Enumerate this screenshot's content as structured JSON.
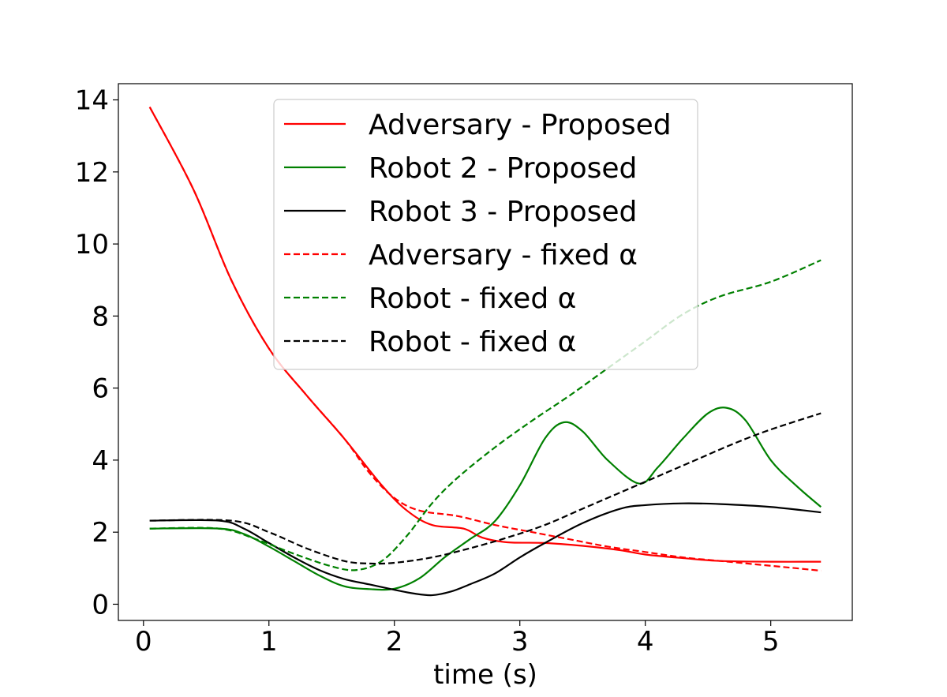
{
  "chart_data": {
    "type": "line",
    "title": "",
    "xlabel": "time (s)",
    "ylabel": "",
    "xlim": [
      -0.2,
      5.65
    ],
    "ylim": [
      -0.45,
      14.45
    ],
    "xticks": [
      0,
      1,
      2,
      3,
      4,
      5
    ],
    "yticks": [
      0,
      2,
      4,
      6,
      8,
      10,
      12,
      14
    ],
    "grid": false,
    "legend": "upper-center",
    "series": [
      {
        "name": "Adversary - Proposed",
        "color": "#ff0000",
        "style": "solid",
        "x": [
          0.05,
          0.4,
          0.7,
          1.0,
          1.3,
          1.6,
          1.9,
          2.1,
          2.3,
          2.55,
          2.7,
          2.9,
          3.2,
          3.5,
          3.8,
          4.0,
          4.3,
          4.6,
          5.0,
          5.4
        ],
        "y": [
          13.8,
          11.5,
          9.0,
          7.1,
          5.8,
          4.6,
          3.3,
          2.6,
          2.2,
          2.1,
          1.85,
          1.72,
          1.7,
          1.62,
          1.5,
          1.38,
          1.28,
          1.2,
          1.18,
          1.18
        ]
      },
      {
        "name": "Robot 2 - Proposed",
        "color": "#008000",
        "style": "solid",
        "x": [
          0.05,
          0.6,
          0.8,
          1.0,
          1.2,
          1.4,
          1.6,
          1.8,
          2.0,
          2.2,
          2.4,
          2.6,
          2.8,
          3.0,
          3.2,
          3.35,
          3.5,
          3.7,
          3.95,
          4.1,
          4.3,
          4.5,
          4.65,
          4.8,
          5.0,
          5.2,
          5.4
        ],
        "y": [
          2.1,
          2.1,
          1.95,
          1.6,
          1.2,
          0.8,
          0.5,
          0.42,
          0.43,
          0.72,
          1.3,
          1.8,
          2.3,
          3.3,
          4.6,
          5.05,
          4.8,
          4.0,
          3.35,
          3.8,
          4.6,
          5.3,
          5.45,
          5.1,
          4.0,
          3.3,
          2.7
        ]
      },
      {
        "name": "Robot 3 - Proposed",
        "color": "#000000",
        "style": "solid",
        "x": [
          0.05,
          0.6,
          0.8,
          1.0,
          1.2,
          1.4,
          1.6,
          1.8,
          2.0,
          2.15,
          2.3,
          2.45,
          2.6,
          2.8,
          3.0,
          3.2,
          3.5,
          3.8,
          4.0,
          4.3,
          4.6,
          5.0,
          5.4
        ],
        "y": [
          2.32,
          2.32,
          2.1,
          1.7,
          1.3,
          0.95,
          0.7,
          0.55,
          0.4,
          0.3,
          0.25,
          0.35,
          0.55,
          0.85,
          1.3,
          1.7,
          2.25,
          2.65,
          2.75,
          2.8,
          2.78,
          2.7,
          2.55
        ]
      },
      {
        "name": "Adversary - fixed α",
        "color": "#ff0000",
        "style": "dashed",
        "x": [
          0.05,
          0.4,
          0.7,
          1.0,
          1.3,
          1.6,
          1.8,
          2.0,
          2.2,
          2.5,
          2.8,
          3.1,
          3.4,
          3.7,
          4.0,
          4.3,
          4.6,
          4.9,
          5.2,
          5.4
        ],
        "y": [
          13.8,
          11.5,
          9.0,
          7.1,
          5.8,
          4.6,
          3.65,
          2.95,
          2.6,
          2.45,
          2.2,
          2.0,
          1.8,
          1.6,
          1.45,
          1.3,
          1.2,
          1.1,
          1.0,
          0.93
        ]
      },
      {
        "name": "Robot - fixed α",
        "color": "#008000",
        "style": "dashed",
        "x": [
          0.05,
          0.6,
          0.9,
          1.2,
          1.5,
          1.7,
          1.9,
          2.1,
          2.3,
          2.5,
          2.8,
          3.1,
          3.4,
          3.7,
          4.0,
          4.3,
          4.6,
          5.0,
          5.4
        ],
        "y": [
          2.1,
          2.1,
          1.8,
          1.4,
          1.05,
          0.95,
          1.2,
          1.9,
          2.8,
          3.5,
          4.35,
          5.1,
          5.8,
          6.55,
          7.3,
          8.05,
          8.55,
          8.95,
          9.55
        ]
      },
      {
        "name": "Robot - fixed α",
        "color": "#000000",
        "style": "dashed",
        "x": [
          0.05,
          0.7,
          1.0,
          1.3,
          1.6,
          1.8,
          2.0,
          2.3,
          2.6,
          2.9,
          3.2,
          3.5,
          3.8,
          4.1,
          4.4,
          4.7,
          5.0,
          5.4
        ],
        "y": [
          2.32,
          2.32,
          2.0,
          1.55,
          1.2,
          1.13,
          1.15,
          1.3,
          1.55,
          1.85,
          2.2,
          2.65,
          3.1,
          3.55,
          4.0,
          4.45,
          4.85,
          5.3
        ]
      }
    ]
  }
}
